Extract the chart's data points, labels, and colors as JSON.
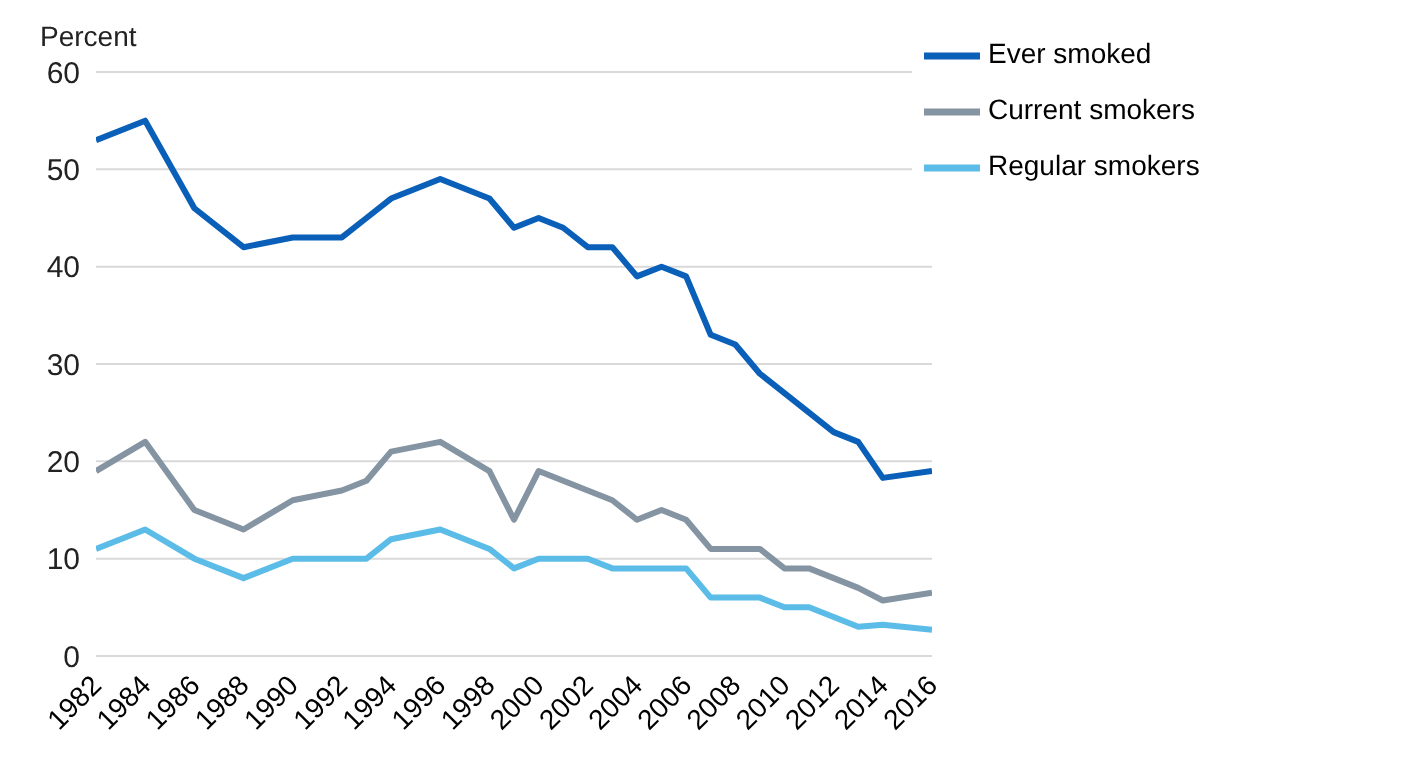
{
  "chart_data": {
    "type": "line",
    "ylabel": "Percent",
    "x": [
      1982,
      1984,
      1986,
      1988,
      1990,
      1992,
      1993,
      1994,
      1996,
      1998,
      1999,
      2000,
      2001,
      2002,
      2003,
      2004,
      2005,
      2006,
      2007,
      2008,
      2009,
      2010,
      2011,
      2012,
      2013,
      2014,
      2016
    ],
    "series": [
      {
        "name": "Ever smoked",
        "color": "#0a5fb8",
        "values": [
          53,
          55,
          46,
          42,
          43,
          43,
          45,
          47,
          49,
          47,
          44,
          45,
          44,
          42,
          42,
          39,
          40,
          39,
          33,
          32,
          29,
          27,
          25,
          23,
          22,
          18.3,
          19
        ]
      },
      {
        "name": "Current smokers",
        "color": "#8494a2",
        "values": [
          19,
          22,
          15,
          13,
          16,
          17,
          18,
          21,
          22,
          19,
          14,
          19,
          18,
          17,
          16,
          14,
          15,
          14,
          11,
          11,
          11,
          9,
          9,
          8,
          7,
          5.7,
          6.5
        ]
      },
      {
        "name": "Regular smokers",
        "color": "#5bbce8",
        "values": [
          11,
          13,
          10,
          8,
          10,
          10,
          10,
          12,
          13,
          11,
          9,
          10,
          10,
          10,
          9,
          9,
          9,
          9,
          6,
          6,
          6,
          5,
          5,
          4,
          3,
          3.2,
          2.7
        ]
      }
    ],
    "xlim": [
      1982,
      2016
    ],
    "xticks": [
      1982,
      1984,
      1986,
      1988,
      1990,
      1992,
      1994,
      1996,
      1998,
      2000,
      2002,
      2004,
      2006,
      2008,
      2010,
      2012,
      2014,
      2016
    ],
    "ylim": [
      0,
      60
    ],
    "yticks": [
      0,
      10,
      20,
      30,
      40,
      50,
      60
    ],
    "grid": "y",
    "legend": "top right",
    "marker": "none",
    "line_style": "solid"
  }
}
